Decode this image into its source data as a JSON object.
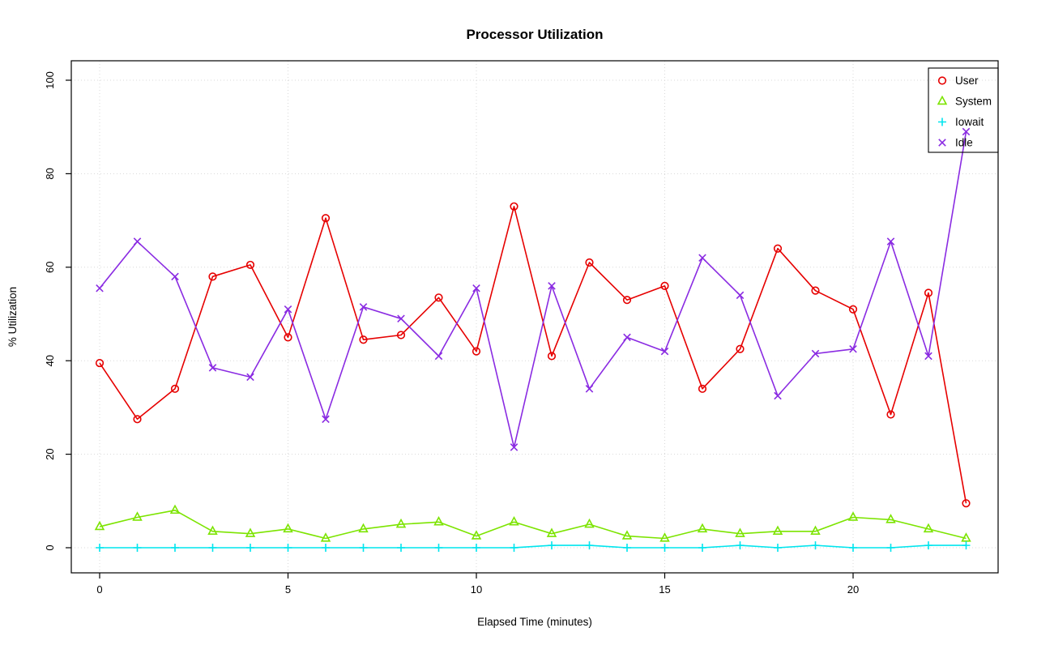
{
  "chart_data": {
    "type": "line",
    "title": "Processor Utilization",
    "xlabel": "Elapsed Time (minutes)",
    "ylabel": "% Utilization",
    "xlim": [
      0,
      23
    ],
    "ylim": [
      0,
      100
    ],
    "x_ticks": [
      0,
      5,
      10,
      15,
      20
    ],
    "y_ticks": [
      0,
      20,
      40,
      60,
      80,
      100
    ],
    "grid": true,
    "grid_style": "dotted",
    "grid_color": "#d8d8d8",
    "legend_position": "top-right",
    "x": [
      0,
      1,
      2,
      3,
      4,
      5,
      6,
      7,
      8,
      9,
      10,
      11,
      12,
      13,
      14,
      15,
      16,
      17,
      18,
      19,
      20,
      21,
      22,
      23
    ],
    "series": [
      {
        "name": "User",
        "color": "#e60000",
        "marker": "circle",
        "values": [
          39.5,
          27.5,
          34,
          58,
          60.5,
          45,
          70.5,
          44.5,
          45.5,
          53.5,
          42,
          73,
          41,
          61,
          53,
          56,
          34,
          42.5,
          64,
          55,
          51,
          28.5,
          54.5,
          9.5
        ]
      },
      {
        "name": "System",
        "color": "#7ce400",
        "marker": "triangle",
        "values": [
          4.5,
          6.5,
          8,
          3.5,
          3,
          4,
          2,
          4,
          5,
          5.5,
          2.5,
          5.5,
          3,
          5,
          2.5,
          2,
          4,
          3,
          3.5,
          3.5,
          6.5,
          6,
          4,
          2
        ]
      },
      {
        "name": "Iowait",
        "color": "#00e5ee",
        "marker": "plus",
        "values": [
          0,
          0,
          0,
          0,
          0,
          0,
          0,
          0,
          0,
          0,
          0,
          0,
          0.5,
          0.5,
          0,
          0,
          0,
          0.5,
          0,
          0.5,
          0,
          0,
          0.5,
          0.5
        ]
      },
      {
        "name": "Idle",
        "color": "#8a2be2",
        "marker": "x",
        "values": [
          55.5,
          65.5,
          58,
          38.5,
          36.5,
          51,
          27.5,
          51.5,
          49,
          41,
          55.5,
          21.5,
          56,
          34,
          45,
          42,
          62,
          54,
          32.5,
          41.5,
          42.5,
          65.5,
          41,
          89
        ]
      }
    ]
  }
}
